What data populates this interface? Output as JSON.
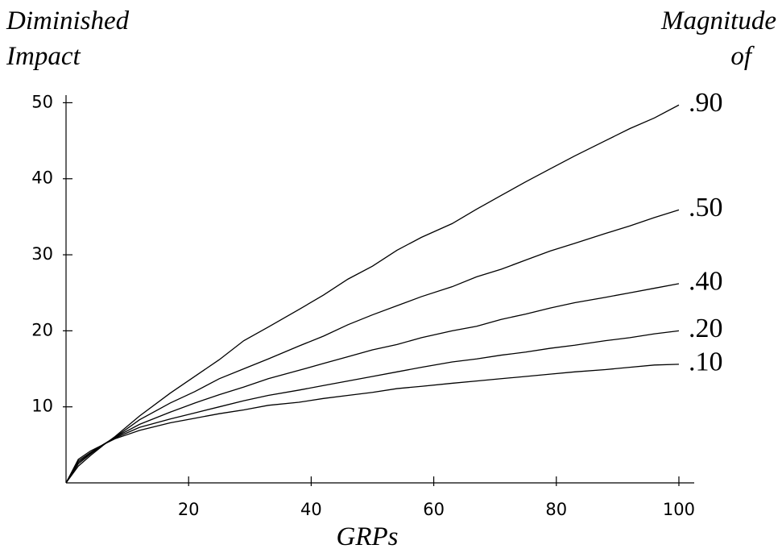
{
  "chart_data": {
    "type": "line",
    "y_label": [
      "Diminished",
      "Impact"
    ],
    "legend_title": [
      "Magnitude",
      "of"
    ],
    "x_label": "GRPs",
    "x": [
      0,
      2,
      4,
      6,
      8,
      12,
      17,
      21,
      25,
      29,
      33,
      38,
      42,
      46,
      50,
      54,
      58,
      63,
      67,
      71,
      75,
      79,
      83,
      88,
      92,
      96,
      100
    ],
    "series": [
      {
        "name": ".90",
        "color": "#000000",
        "values": [
          0,
          2.2,
          3.6,
          4.9,
          6.1,
          8.8,
          11.8,
          14,
          16.2,
          18.7,
          20.5,
          22.8,
          24.7,
          26.8,
          28.5,
          30.6,
          32.3,
          34.1,
          36,
          37.8,
          39.6,
          41.3,
          43,
          45,
          46.6,
          48,
          49.7
        ]
      },
      {
        "name": ".50",
        "color": "#000000",
        "values": [
          0,
          2.5,
          3.8,
          5,
          6,
          8.3,
          10.5,
          12,
          13.7,
          15,
          16.3,
          18,
          19.3,
          20.8,
          22.1,
          23.3,
          24.5,
          25.8,
          27.1,
          28.1,
          29.3,
          30.5,
          31.5,
          32.8,
          33.8,
          34.9,
          35.9
        ]
      },
      {
        "name": ".40",
        "color": "#000000",
        "values": [
          0,
          2.7,
          3.9,
          5,
          6,
          7.7,
          9.3,
          10.5,
          11.6,
          12.6,
          13.7,
          14.8,
          15.7,
          16.6,
          17.5,
          18.2,
          19.1,
          20,
          20.6,
          21.5,
          22.2,
          23,
          23.7,
          24.4,
          25,
          25.6,
          26.2
        ]
      },
      {
        "name": ".20",
        "color": "#000000",
        "values": [
          0,
          2.9,
          4,
          5,
          5.9,
          7.3,
          8.4,
          9.2,
          10,
          10.8,
          11.5,
          12.2,
          12.8,
          13.4,
          14,
          14.6,
          15.2,
          15.9,
          16.3,
          16.8,
          17.2,
          17.7,
          18.1,
          18.7,
          19.1,
          19.6,
          20
        ]
      },
      {
        "name": ".10",
        "color": "#000000",
        "values": [
          0,
          3.1,
          4.2,
          5,
          5.8,
          6.9,
          7.9,
          8.5,
          9.1,
          9.6,
          10.2,
          10.6,
          11.1,
          11.5,
          11.9,
          12.4,
          12.7,
          13.1,
          13.4,
          13.7,
          14,
          14.3,
          14.6,
          14.9,
          15.2,
          15.5,
          15.6
        ]
      }
    ],
    "xlim": [
      0,
      102.5
    ],
    "ylim": [
      0,
      51
    ],
    "xticks": [
      20,
      40,
      60,
      80,
      100
    ],
    "yticks": [
      10,
      20,
      30,
      40,
      50
    ],
    "grid": false
  }
}
